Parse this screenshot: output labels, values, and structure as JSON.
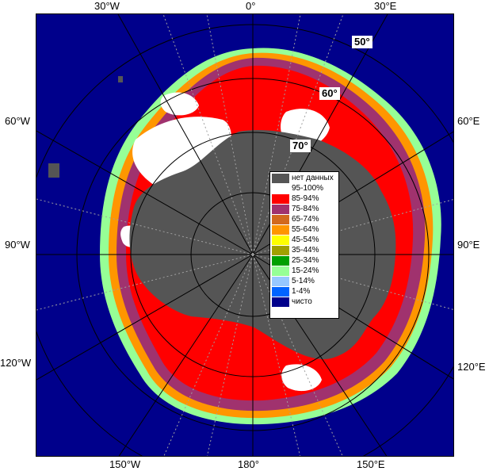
{
  "map": {
    "colors": {
      "ocean": "#00008b",
      "land": "#555555",
      "frame_background": "#ffffff",
      "gridline": "#a0a0a0"
    },
    "longitude_labels": {
      "top_30w": "30°W",
      "top_0": "0°",
      "top_30e": "30°E",
      "left_60w": "60°W",
      "right_60e": "60°E",
      "left_90w": "90°W",
      "right_90e": "90°E",
      "left_120w": "120°W",
      "right_120e": "120°E",
      "bottom_150w": "150°W",
      "bottom_180": "180°",
      "bottom_150e": "150°E"
    },
    "latitude_labels": {
      "lat_50": "50°",
      "lat_60": "60°",
      "lat_70": "70°"
    }
  },
  "legend": {
    "items": [
      {
        "label": "нет данных",
        "color": "#555555"
      },
      {
        "label": "95-100%",
        "color": "#ffffff"
      },
      {
        "label": "85-94%",
        "color": "#ff0000"
      },
      {
        "label": "75-84%",
        "color": "#a0326e"
      },
      {
        "label": "65-74%",
        "color": "#d2691e"
      },
      {
        "label": "55-64%",
        "color": "#ff9600"
      },
      {
        "label": "45-54%",
        "color": "#ffff00"
      },
      {
        "label": "35-44%",
        "color": "#a0a000"
      },
      {
        "label": "25-34%",
        "color": "#00a000"
      },
      {
        "label": "15-24%",
        "color": "#96ff96"
      },
      {
        "label": "5-14%",
        "color": "#96c8ff"
      },
      {
        "label": "1-4%",
        "color": "#0064ff"
      },
      {
        "label": "чисто",
        "color": "#00008b"
      }
    ]
  }
}
